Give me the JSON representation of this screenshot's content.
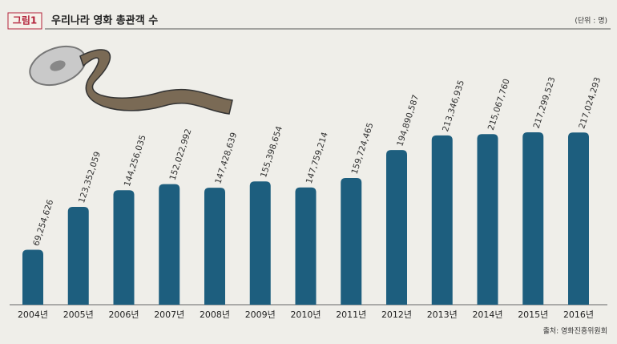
{
  "chart_data": {
    "type": "bar",
    "figure_label": "그림1",
    "title": "우리나라 영화 총관객 수",
    "unit": "(단위 : 명)",
    "source": "출처: 영화진흥위원회",
    "categories": [
      "2004년",
      "2005년",
      "2006년",
      "2007년",
      "2008년",
      "2009년",
      "2010년",
      "2011년",
      "2012년",
      "2013년",
      "2014년",
      "2015년",
      "2016년"
    ],
    "values": [
      69254626,
      123352059,
      144256035,
      152022992,
      147428639,
      155398654,
      147759214,
      159724465,
      194890587,
      213346935,
      215067760,
      217299523,
      217024293
    ],
    "value_labels": [
      "69,254,626",
      "123,352,059",
      "144,256,035",
      "152,022,992",
      "147,428,639",
      "155,398,654",
      "147,759,214",
      "159,724,465",
      "194,890,587",
      "213,346,935",
      "215,067,760",
      "217,299,523",
      "217,024,293"
    ],
    "color": "#1d5e7e"
  }
}
